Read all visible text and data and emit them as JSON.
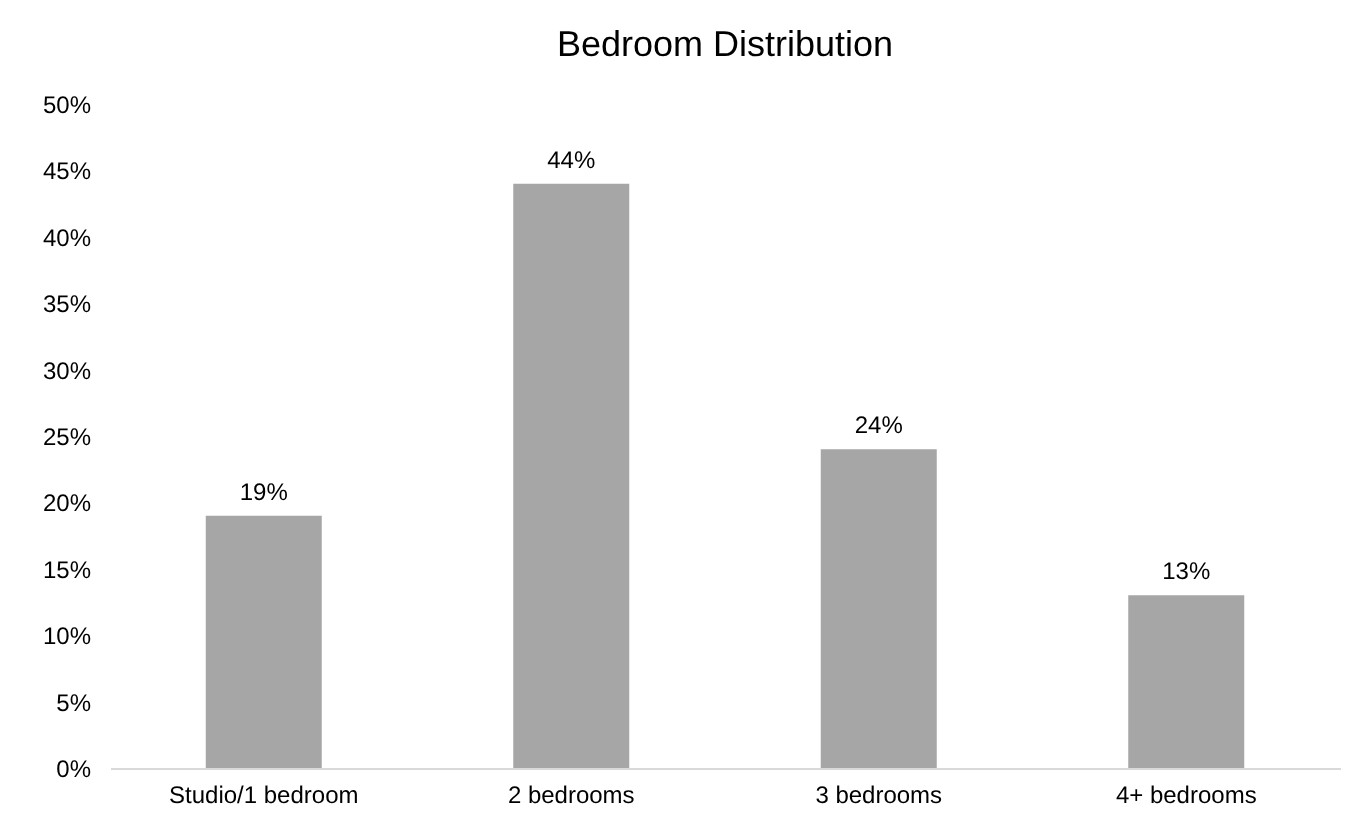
{
  "chart_data": {
    "type": "bar",
    "title": "Bedroom Distribution",
    "categories": [
      "Studio/1 bedroom",
      "2 bedrooms",
      "3 bedrooms",
      "4+ bedrooms"
    ],
    "values": [
      19,
      44,
      24,
      13
    ],
    "value_labels": [
      "19%",
      "44%",
      "24%",
      "13%"
    ],
    "color": "#a6a6a6",
    "ylim": [
      0,
      50
    ],
    "yticks": [
      {
        "value": 0,
        "label": "0%"
      },
      {
        "value": 5,
        "label": "5%"
      },
      {
        "value": 10,
        "label": "10%"
      },
      {
        "value": 15,
        "label": "15%"
      },
      {
        "value": 20,
        "label": "20%"
      },
      {
        "value": 25,
        "label": "25%"
      },
      {
        "value": 30,
        "label": "30%"
      },
      {
        "value": 35,
        "label": "35%"
      },
      {
        "value": 40,
        "label": "40%"
      },
      {
        "value": 45,
        "label": "45%"
      },
      {
        "value": 50,
        "label": "50%"
      }
    ],
    "grid": false
  }
}
